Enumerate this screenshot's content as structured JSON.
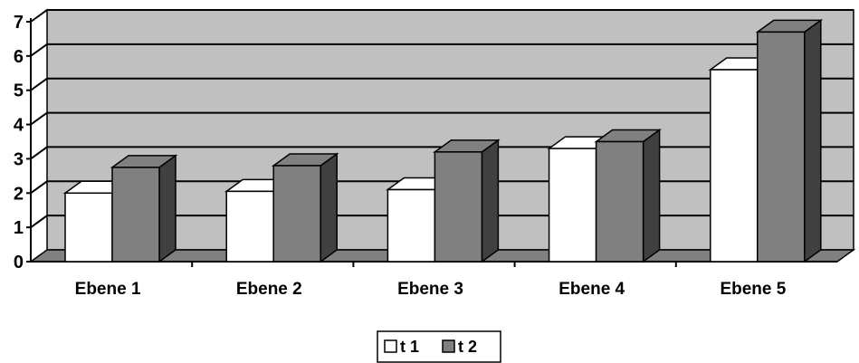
{
  "chart_data": {
    "type": "bar",
    "style": "3d-clustered-column",
    "categories": [
      "Ebene 1",
      "Ebene 2",
      "Ebene 3",
      "Ebene 4",
      "Ebene 5"
    ],
    "series": [
      {
        "name": "t 1",
        "values": [
          2.0,
          2.05,
          2.1,
          3.3,
          5.6
        ],
        "color": "#ffffff"
      },
      {
        "name": "t 2",
        "values": [
          2.75,
          2.8,
          3.2,
          3.5,
          6.7
        ],
        "color": "#808080"
      }
    ],
    "title": "",
    "xlabel": "",
    "ylabel": "",
    "ylim": [
      0,
      7
    ],
    "yticks": [
      "0",
      "1",
      "2",
      "3",
      "4",
      "5",
      "6",
      "7"
    ],
    "grid": true,
    "wall_color": "#c0c0c0",
    "floor_color": "#808080",
    "legend_position": "bottom"
  }
}
